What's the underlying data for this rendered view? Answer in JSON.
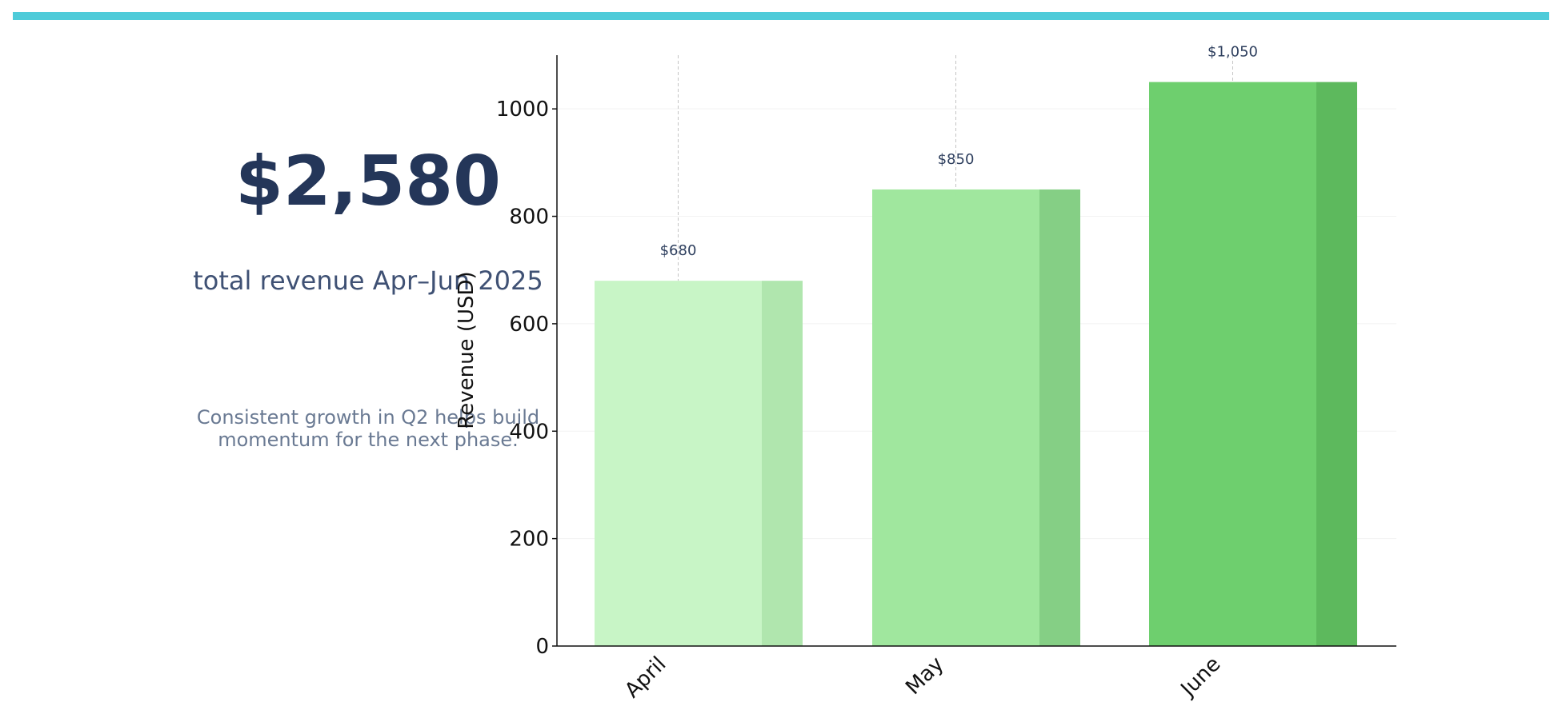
{
  "kpi": {
    "value": "$2,580",
    "label": "total revenue Apr–Jun 2025",
    "note": "Consistent growth in Q2 helps build\nmomentum for the next phase."
  },
  "colors": {
    "accent": "#4ECBD9",
    "kpi_value": "#243659",
    "kpi_label": "#3F5174",
    "kpi_note": "#6A7A93",
    "data_label": "#2E3F5E",
    "axis": "#111111"
  },
  "chart_data": {
    "type": "bar",
    "categories": [
      "April",
      "May",
      "June"
    ],
    "values": [
      680,
      850,
      1050
    ],
    "data_labels": [
      "$680",
      "$850",
      "$1,050"
    ],
    "ylabel": "Revenue (USD)",
    "xlabel": "",
    "ylim": [
      0,
      1100
    ],
    "yticks": [
      0,
      200,
      400,
      600,
      800,
      1000
    ],
    "bar_colors": [
      "#C8F5C6",
      "#A0E79E",
      "#6ECF6E"
    ],
    "bar_shade_colors": [
      "#B0E6AE",
      "#85CF85",
      "#5DB95D"
    ],
    "grid": "horizontal, faint",
    "legend": "none"
  }
}
